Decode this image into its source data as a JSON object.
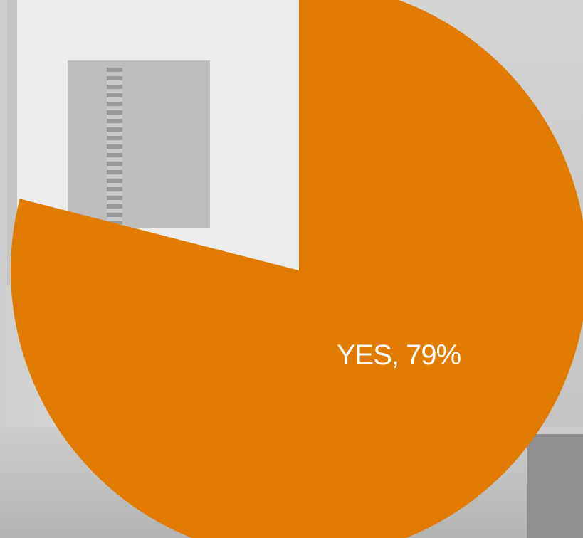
{
  "chart_data": {
    "type": "pie",
    "title": "",
    "slices": [
      {
        "label": "YES",
        "value": 79,
        "color": "#e07b00",
        "data_label": "YES, 79%"
      },
      {
        "label": "",
        "value": 21,
        "color": "transparent",
        "data_label": ""
      }
    ]
  }
}
